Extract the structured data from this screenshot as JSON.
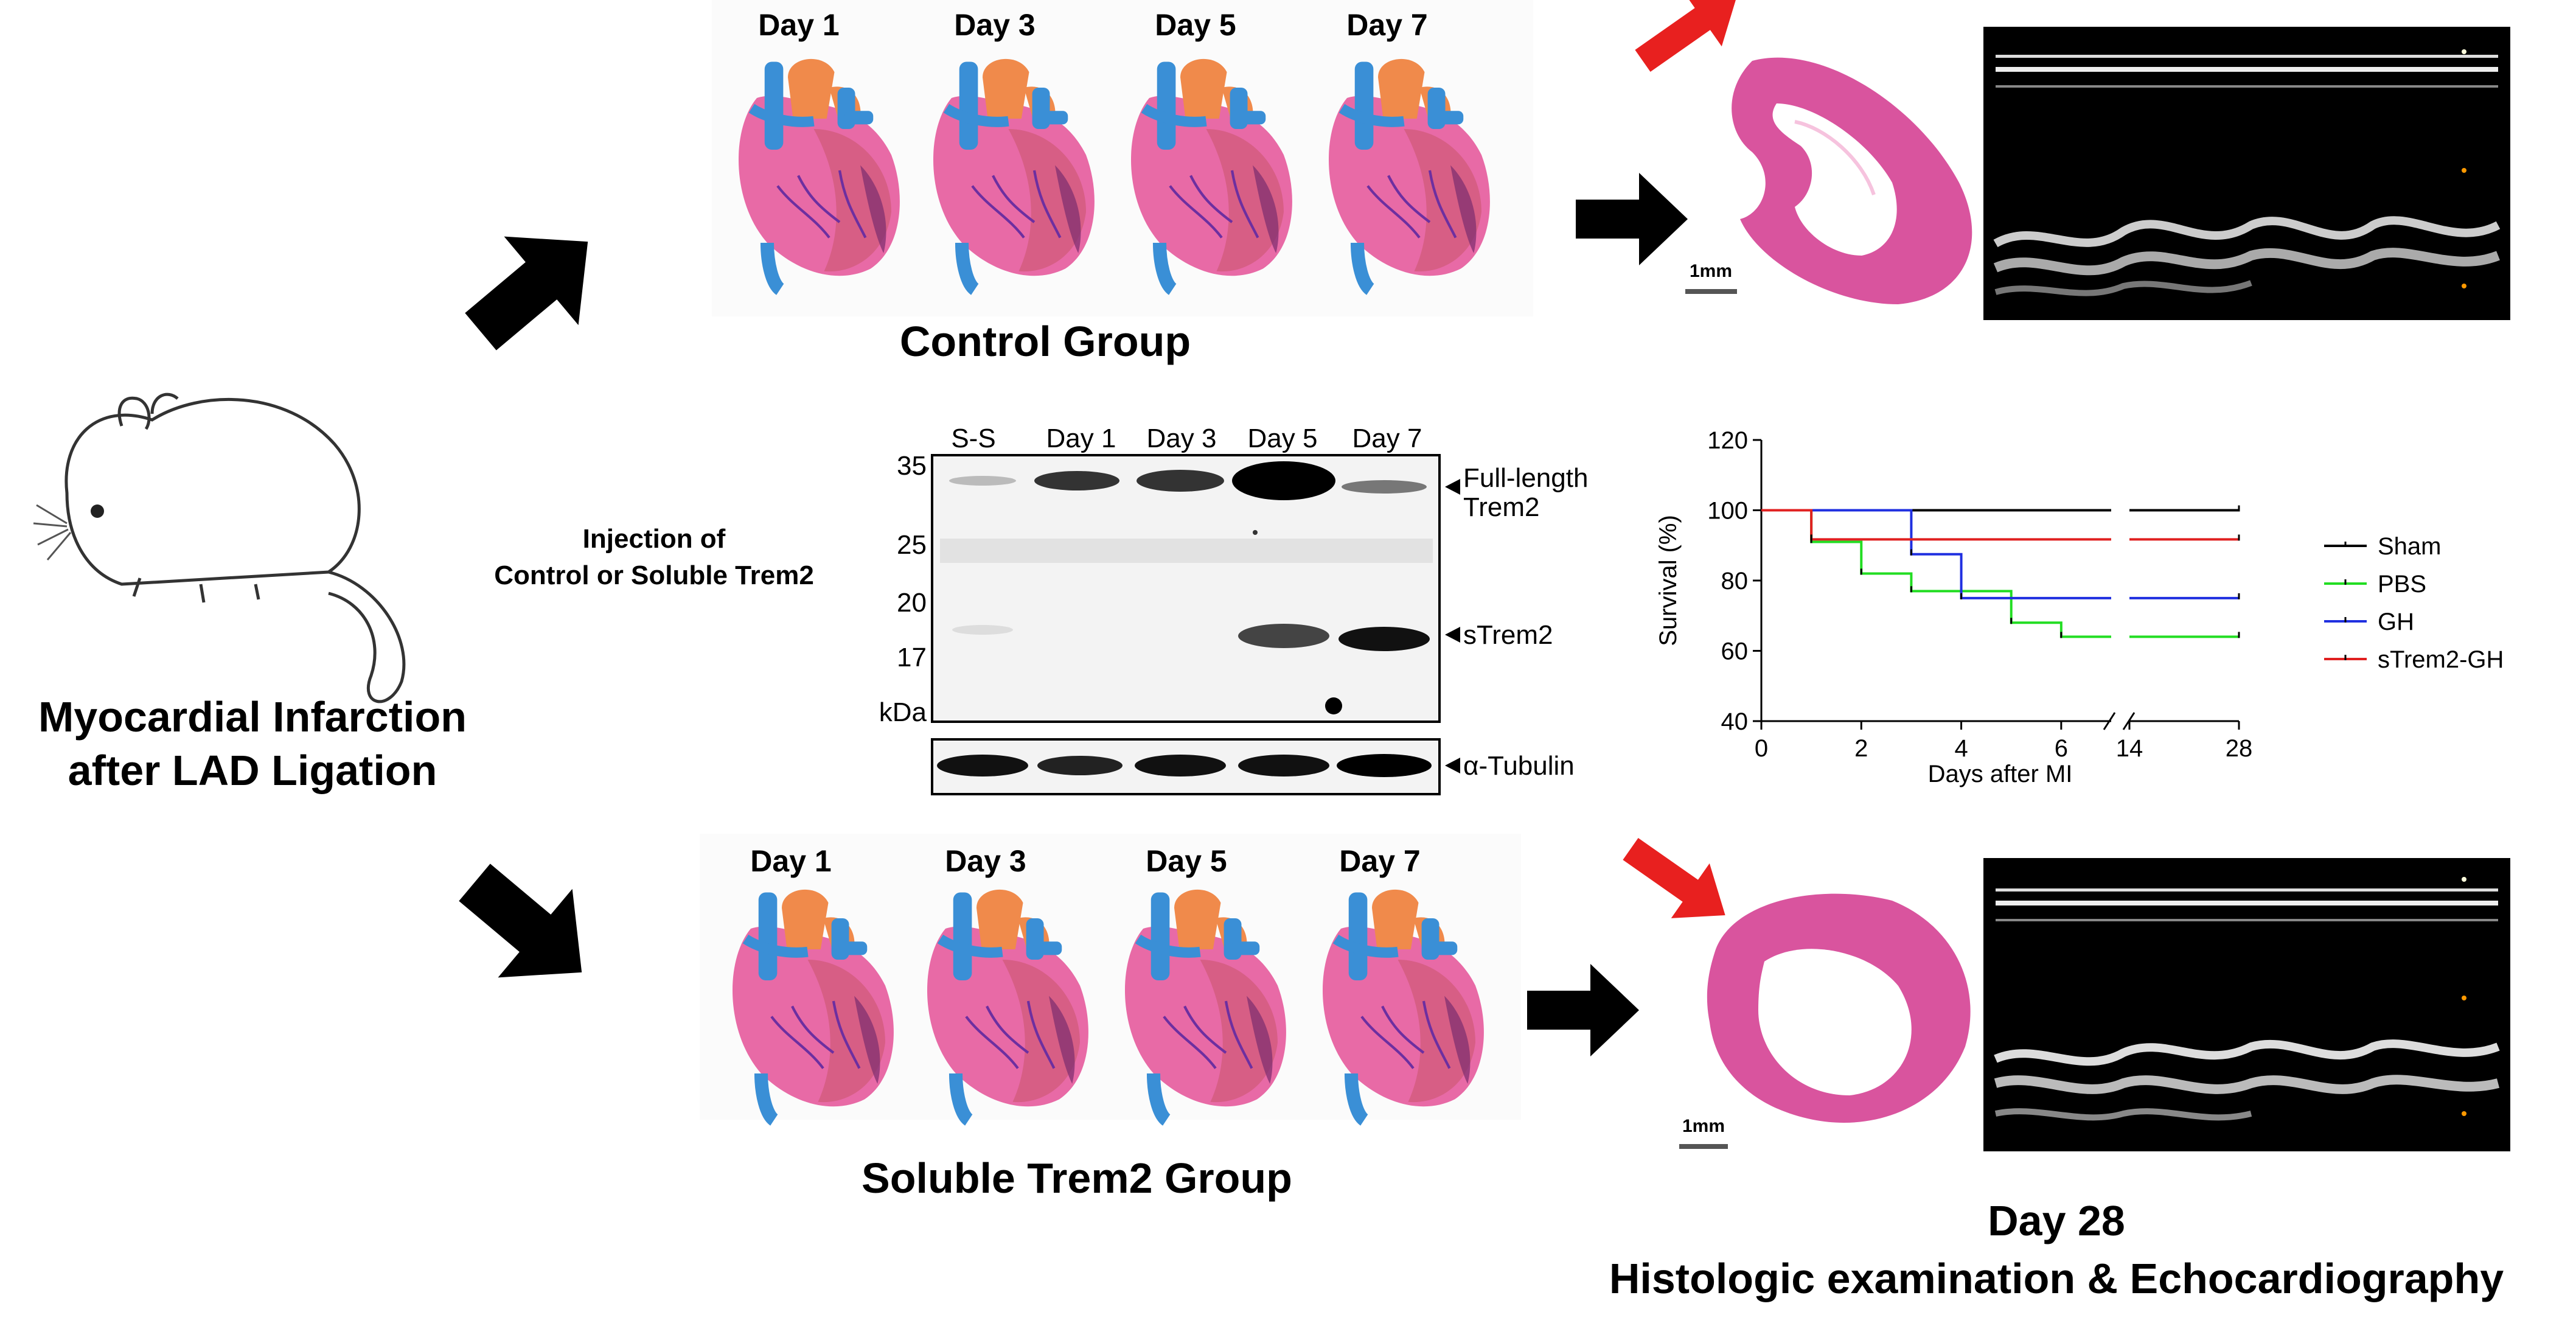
{
  "mouse": {
    "caption_line1": "Myocardial Infarction",
    "caption_line2": "after LAD Ligation"
  },
  "injection": {
    "line1": "Injection of",
    "line2": "Control or Soluble Trem2"
  },
  "control_group": {
    "title": "Control Group",
    "days": [
      "Day 1",
      "Day 3",
      "Day 5",
      "Day 7"
    ],
    "scale_bar": "1mm"
  },
  "strem2_group": {
    "title": "Soluble Trem2 Group",
    "days": [
      "Day 1",
      "Day 3",
      "Day 5",
      "Day 7"
    ],
    "scale_bar": "1mm"
  },
  "western_blot": {
    "lanes": [
      "S-S",
      "Day 1",
      "Day 3",
      "Day 5",
      "Day 7"
    ],
    "mw_markers": [
      "35",
      "25",
      "20",
      "17",
      "kDa"
    ],
    "band_labels": {
      "full_length_line1": "Full-length",
      "full_length_line2": "Trem2",
      "strem2": "sTrem2",
      "tubulin": "α-Tubulin"
    }
  },
  "footer": {
    "line1": "Day 28",
    "line2": "Histologic examination & Echocardiography"
  },
  "colors": {
    "accent_arrow": "#e8201f",
    "histology": "#d9549e",
    "heart_pink": "#e86aa6",
    "vessel_blue": "#3a8fd6",
    "vessel_orange": "#f08a4b"
  },
  "chart_data": {
    "type": "line",
    "step": true,
    "title": "",
    "xlabel": "Days after MI",
    "ylabel": "Survival (%)",
    "ylim": [
      40,
      120
    ],
    "yticks": [
      "40",
      "60",
      "80",
      "100",
      "120"
    ],
    "xticks": [
      "0",
      "2",
      "4",
      "6",
      "14",
      "28"
    ],
    "axis_break": true,
    "legend_position": "right",
    "series": [
      {
        "name": "Sham",
        "color": "#000000",
        "x": [
          0,
          28
        ],
        "y": [
          100,
          100
        ]
      },
      {
        "name": "PBS",
        "color": "#22dd22",
        "x": [
          0,
          1,
          2,
          3,
          4,
          5,
          6,
          28
        ],
        "y": [
          100,
          91,
          82,
          77,
          77,
          68,
          64,
          64
        ]
      },
      {
        "name": "GH",
        "color": "#1f2fe0",
        "x": [
          0,
          3,
          4,
          28
        ],
        "y": [
          100,
          87.5,
          75,
          75
        ]
      },
      {
        "name": "sTrem2-GH",
        "color": "#e02020",
        "x": [
          0,
          1,
          28
        ],
        "y": [
          100,
          91.7,
          91.7
        ]
      }
    ]
  }
}
